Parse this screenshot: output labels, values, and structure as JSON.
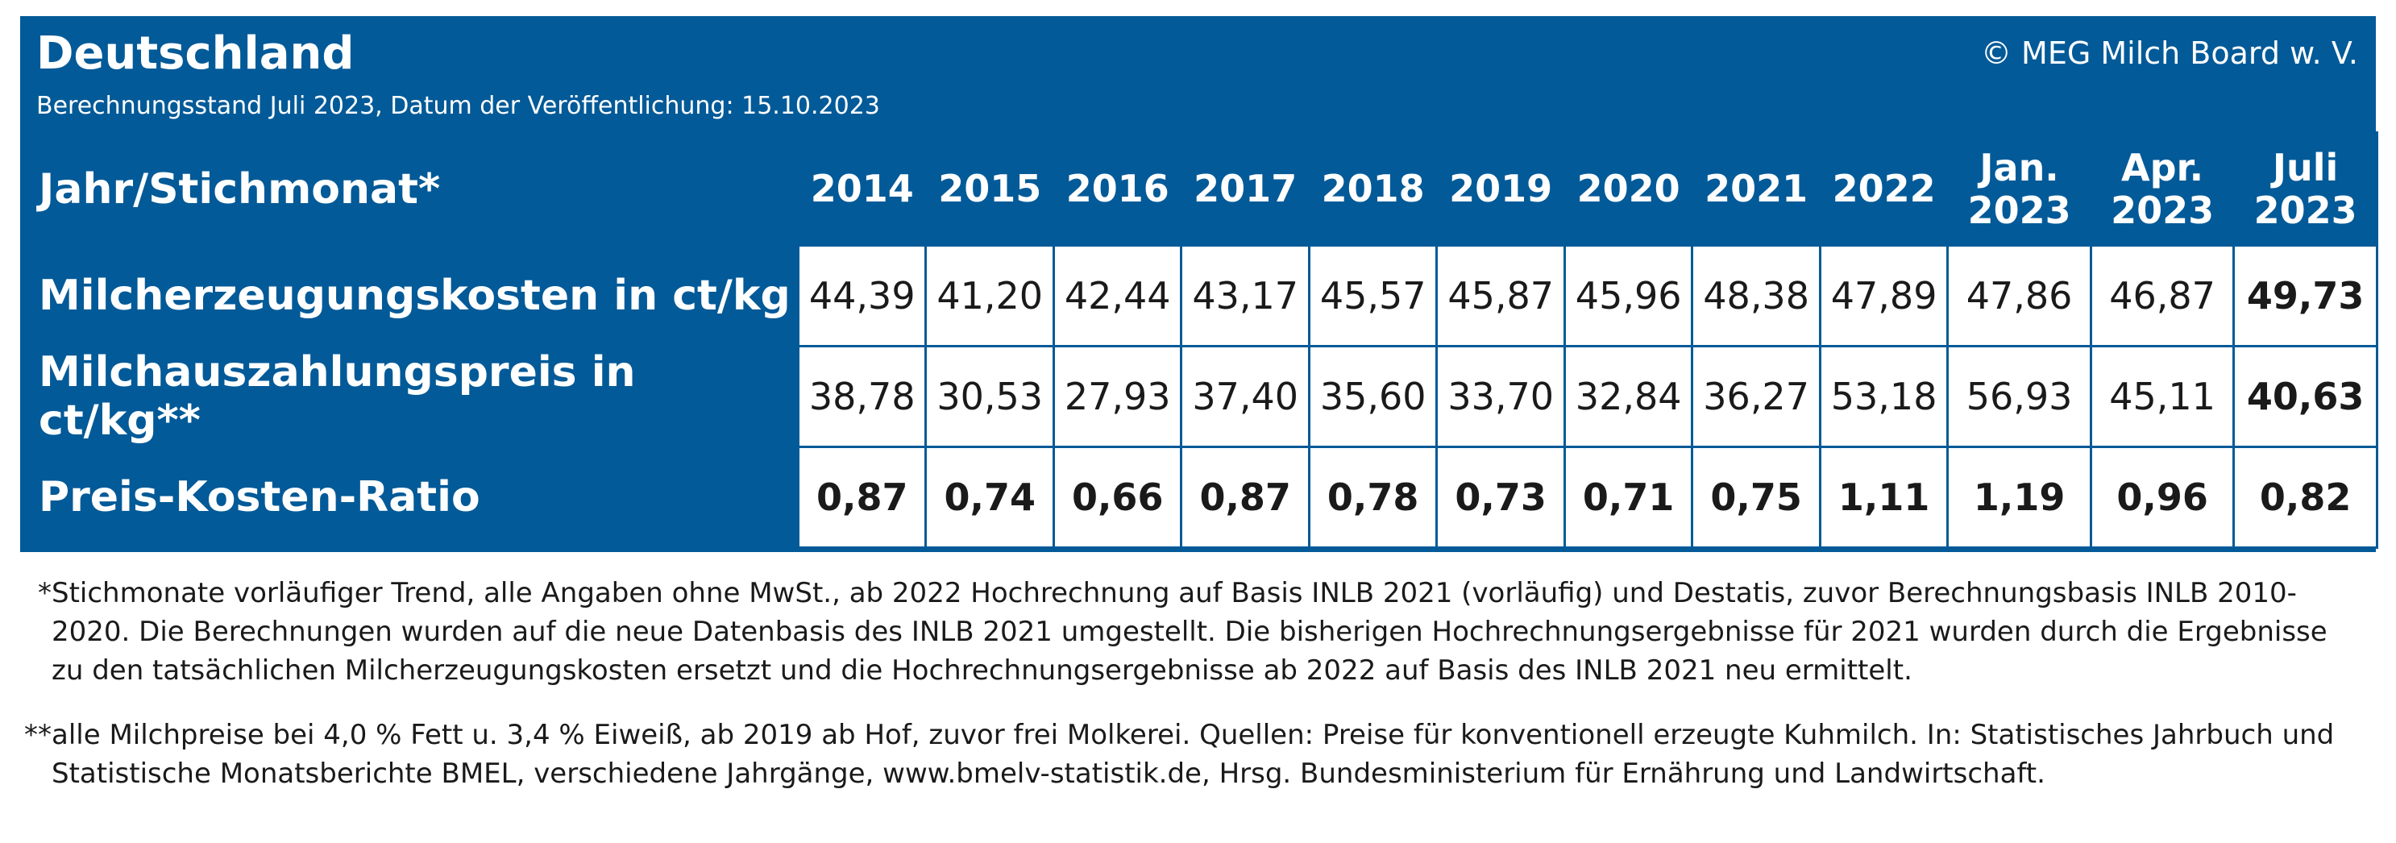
{
  "header": {
    "title": "Deutschland",
    "subtitle": "Berechnungsstand Juli 2023, Datum der Veröffentlichung: 15.10.2023",
    "copyright": "© MEG Milch Board w. V."
  },
  "colors": {
    "panel": "#035a98",
    "text_light": "#ffffff",
    "cell_bg": "#ffffff"
  },
  "chart_data": {
    "type": "table",
    "title": "Deutschland",
    "row_header_label": "Jahr/Stichmonat*",
    "columns": [
      {
        "line1": "2014",
        "line2": ""
      },
      {
        "line1": "2015",
        "line2": ""
      },
      {
        "line1": "2016",
        "line2": ""
      },
      {
        "line1": "2017",
        "line2": ""
      },
      {
        "line1": "2018",
        "line2": ""
      },
      {
        "line1": "2019",
        "line2": ""
      },
      {
        "line1": "2020",
        "line2": ""
      },
      {
        "line1": "2021",
        "line2": ""
      },
      {
        "line1": "2022",
        "line2": ""
      },
      {
        "line1": "Jan.",
        "line2": "2023"
      },
      {
        "line1": "Apr.",
        "line2": "2023"
      },
      {
        "line1": "Juli",
        "line2": "2023"
      }
    ],
    "rows": [
      {
        "label": "Milcherzeugungskosten in ct/kg",
        "values": [
          "44,39",
          "41,20",
          "42,44",
          "43,17",
          "45,57",
          "45,87",
          "45,96",
          "48,38",
          "47,89",
          "47,86",
          "46,87",
          "49,73"
        ],
        "bold": [
          false,
          false,
          false,
          false,
          false,
          false,
          false,
          false,
          false,
          false,
          false,
          true
        ]
      },
      {
        "label": "Milchauszahlungspreis in ct/kg**",
        "values": [
          "38,78",
          "30,53",
          "27,93",
          "37,40",
          "35,60",
          "33,70",
          "32,84",
          "36,27",
          "53,18",
          "56,93",
          "45,11",
          "40,63"
        ],
        "bold": [
          false,
          false,
          false,
          false,
          false,
          false,
          false,
          false,
          false,
          false,
          false,
          true
        ]
      },
      {
        "label": "Preis-Kosten-Ratio",
        "values": [
          "0,87",
          "0,74",
          "0,66",
          "0,87",
          "0,78",
          "0,73",
          "0,71",
          "0,75",
          "1,11",
          "1,19",
          "0,96",
          "0,82"
        ],
        "bold": [
          true,
          true,
          true,
          true,
          true,
          true,
          true,
          true,
          true,
          true,
          true,
          true
        ]
      }
    ]
  },
  "footnotes": [
    {
      "mark": "*",
      "lines": [
        "Stichmonate vorläufiger Trend, alle Angaben ohne MwSt., ab 2022 Hochrechnung auf Basis INLB 2021 (vorläufig) und Destatis, zuvor Berechnungsbasis INLB 2010-",
        "2020. Die Berechnungen wurden auf die neue Datenbasis des INLB 2021 umgestellt. Die bisherigen Hochrechnungsergebnisse für 2021 wurden durch die Ergebnisse",
        "zu den tatsächlichen Milcherzeugungskosten ersetzt und die Hochrechnungsergebnisse ab 2022 auf Basis des INLB 2021 neu ermittelt."
      ]
    },
    {
      "mark": "**",
      "lines": [
        "alle Milchpreise bei 4,0 % Fett u. 3,4 % Eiweiß, ab 2019 ab Hof, zuvor frei Molkerei. Quellen: Preise für konventionell erzeugte Kuhmilch. In: Statistisches Jahrbuch und",
        "Statistische Monatsberichte BMEL, verschiedene Jahrgänge, www.bmelv-statistik.de, Hrsg. Bundesministerium für Ernährung und Landwirtschaft."
      ]
    }
  ]
}
